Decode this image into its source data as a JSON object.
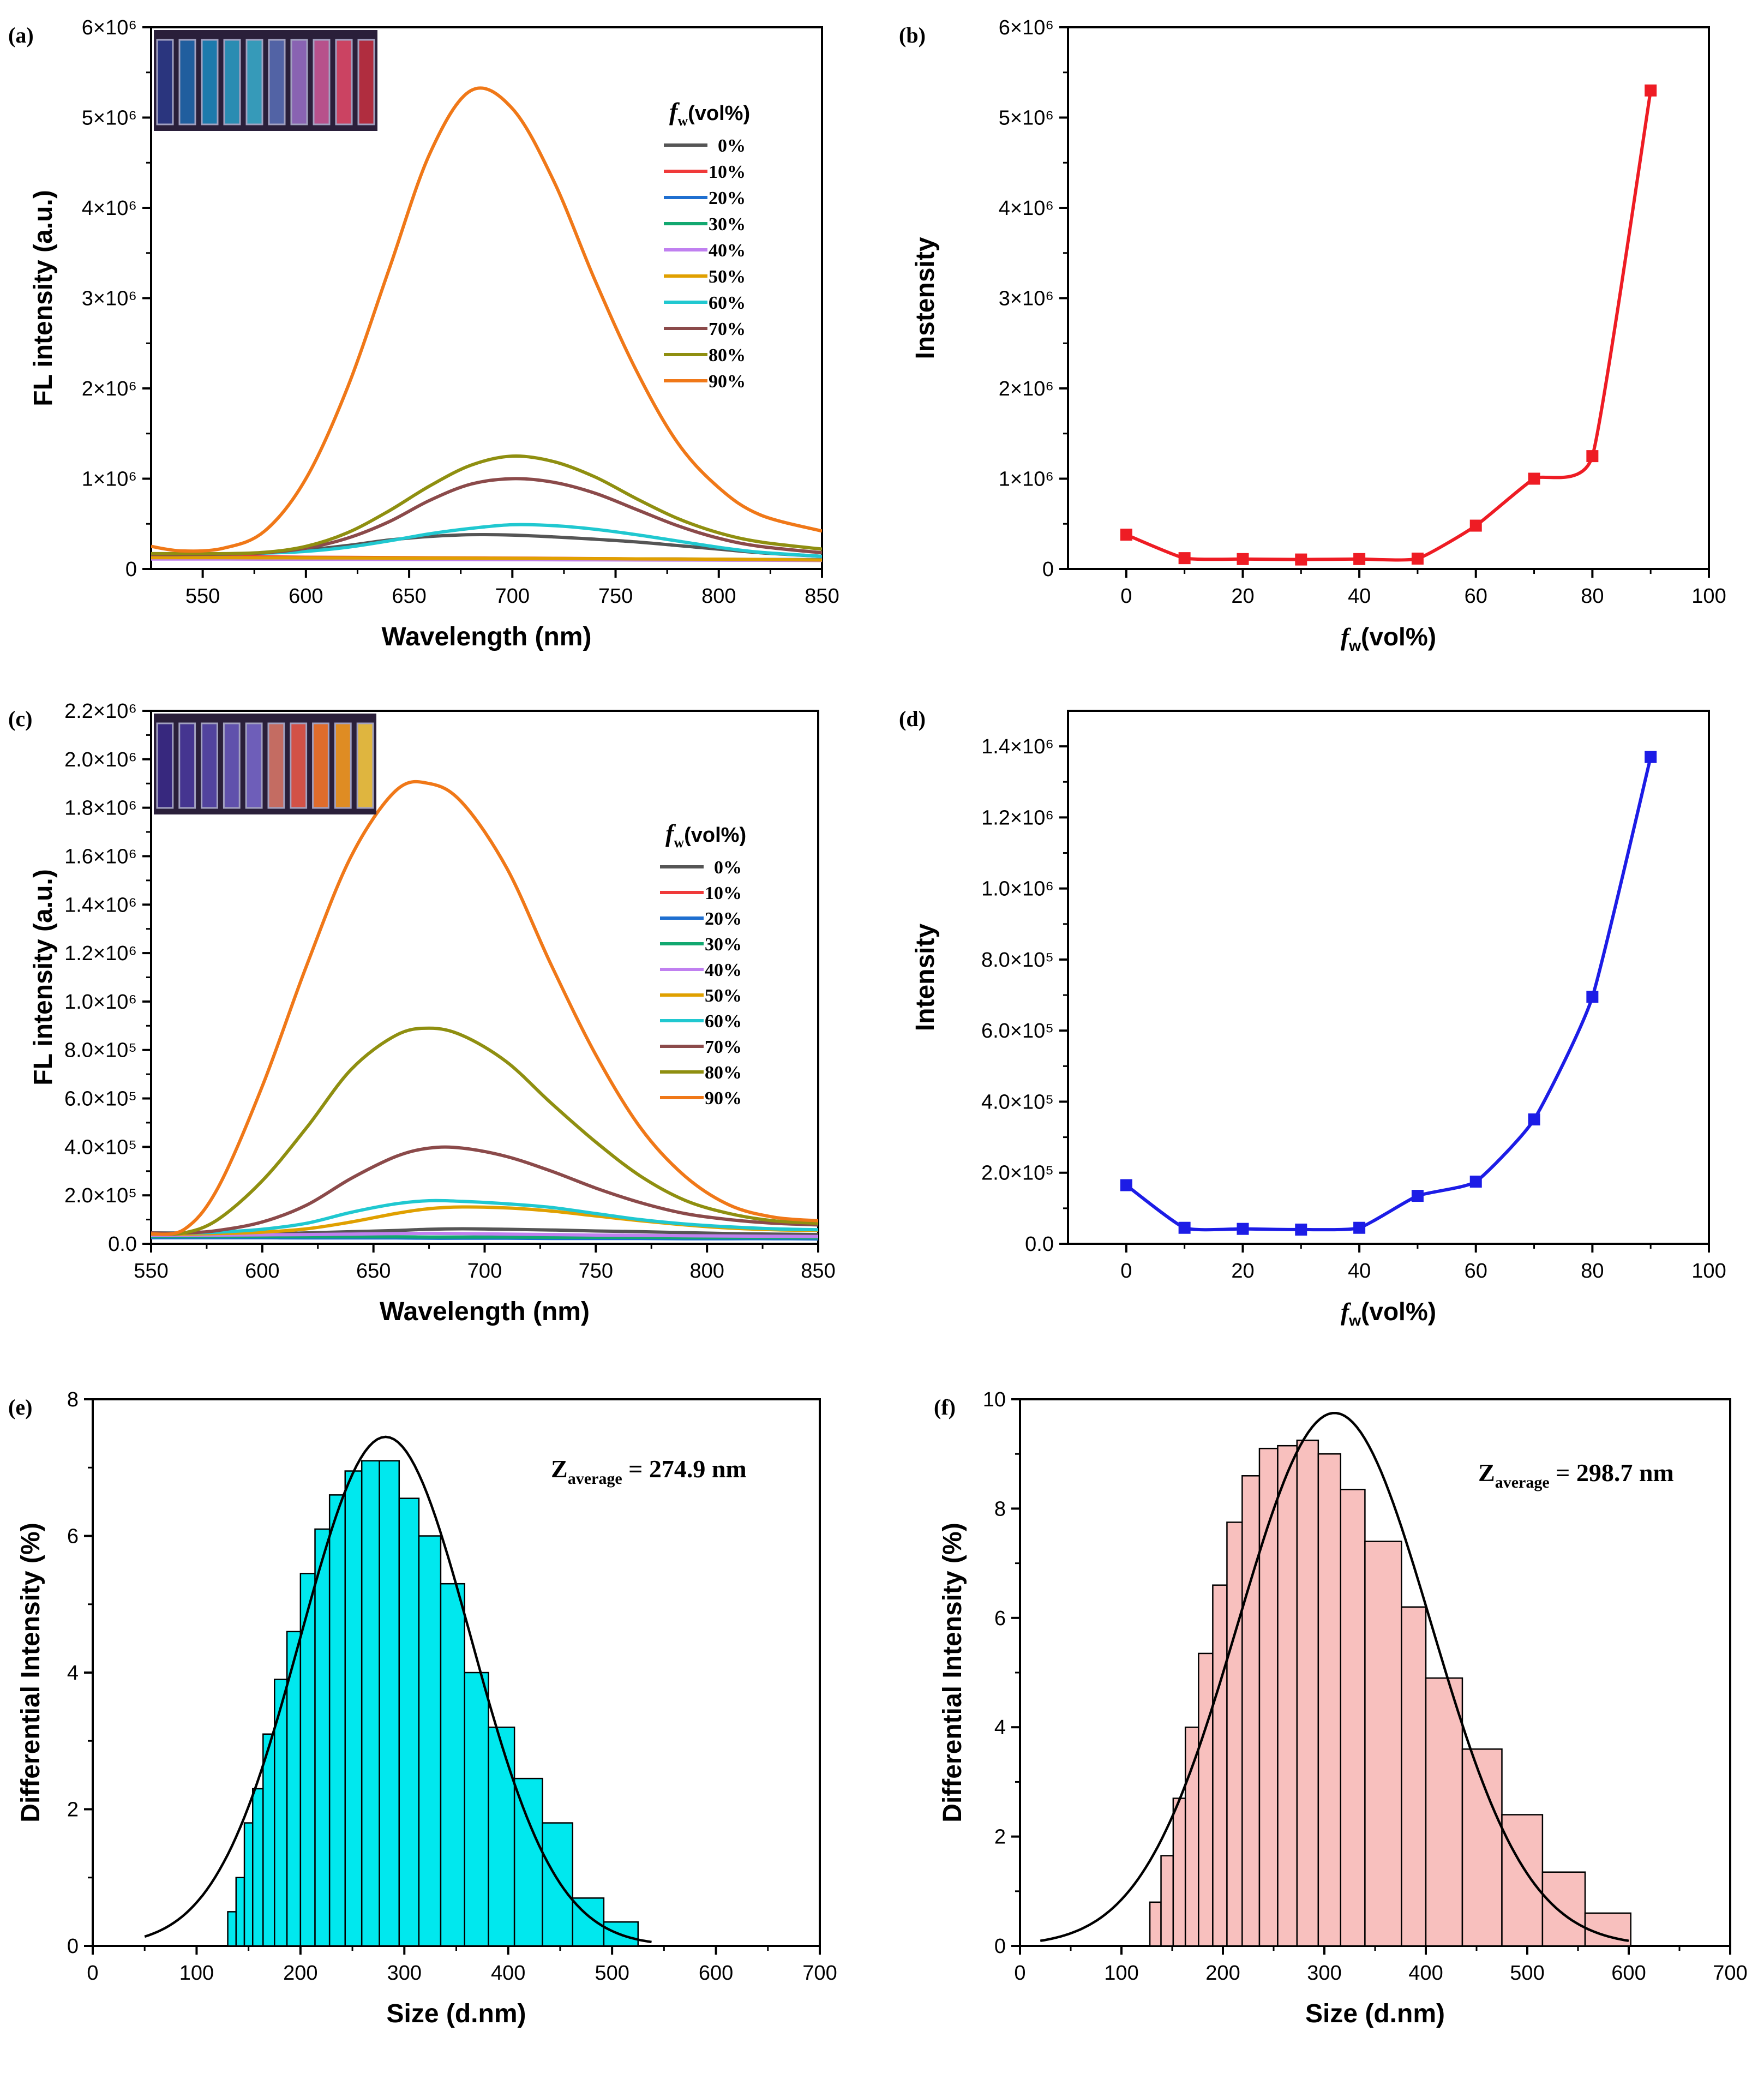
{
  "chart_data": [
    {
      "id": "a",
      "panel_label": "(a)",
      "type": "line",
      "title": "",
      "xlabel": "Wavelength (nm)",
      "ylabel": "FL intensity (a.u.)",
      "xlim": [
        525,
        850
      ],
      "ylim": [
        0,
        6000000
      ],
      "xticks": [
        550,
        600,
        650,
        700,
        750,
        800,
        850
      ],
      "yticks": [
        0,
        1000000,
        2000000,
        3000000,
        4000000,
        5000000,
        6000000
      ],
      "ytick_labels": [
        "0",
        "1×10⁶",
        "2×10⁶",
        "3×10⁶",
        "4×10⁶",
        "5×10⁶",
        "6×10⁶"
      ],
      "legend_title": "fw(vol%)",
      "legend_position": "right",
      "inset": "photo of cuvette series under UV light",
      "inset_colors": [
        "#2a3a8a",
        "#1f6ab0",
        "#1b8ac0",
        "#2aa0c8",
        "#39b0d0",
        "#5a6fb8",
        "#9a6fc8",
        "#d05a9a",
        "#e84a6a",
        "#c83040"
      ],
      "x": [
        525,
        540,
        560,
        580,
        600,
        620,
        640,
        660,
        680,
        700,
        720,
        740,
        760,
        780,
        800,
        820,
        850
      ],
      "series": [
        {
          "name": "0%",
          "color": "#555555",
          "values": [
            150000,
            155000,
            160000,
            180000,
            210000,
            260000,
            320000,
            360000,
            380000,
            375000,
            355000,
            330000,
            300000,
            260000,
            220000,
            180000,
            140000
          ]
        },
        {
          "name": "10%",
          "color": "#f03a3a",
          "values": [
            140000,
            140000,
            140000,
            135000,
            130000,
            128000,
            126000,
            124000,
            122000,
            120000,
            118000,
            115000,
            112000,
            110000,
            105000,
            100000,
            95000
          ]
        },
        {
          "name": "20%",
          "color": "#1f6fd0",
          "values": [
            120000,
            120000,
            120000,
            120000,
            119000,
            118000,
            117000,
            116000,
            115000,
            114000,
            113000,
            112000,
            111000,
            110000,
            108000,
            106000,
            104000
          ]
        },
        {
          "name": "30%",
          "color": "#12a870",
          "values": [
            115000,
            115000,
            115000,
            114000,
            113000,
            112000,
            111000,
            110000,
            109000,
            108000,
            107000,
            106000,
            105000,
            104000,
            103000,
            102000,
            100000
          ]
        },
        {
          "name": "40%",
          "color": "#c080f0",
          "values": [
            110000,
            110000,
            110000,
            109000,
            108000,
            107000,
            106000,
            105000,
            104000,
            103000,
            102000,
            101000,
            100000,
            99000,
            98000,
            97000,
            95000
          ]
        },
        {
          "name": "50%",
          "color": "#e0a000",
          "values": [
            125000,
            125000,
            125000,
            124000,
            123000,
            122000,
            121000,
            120000,
            119000,
            118000,
            116000,
            114000,
            112000,
            110000,
            108000,
            105000,
            100000
          ]
        },
        {
          "name": "60%",
          "color": "#20c8d0",
          "values": [
            160000,
            160000,
            165000,
            175000,
            195000,
            240000,
            310000,
            390000,
            450000,
            490000,
            480000,
            440000,
            380000,
            310000,
            240000,
            185000,
            140000
          ]
        },
        {
          "name": "70%",
          "color": "#8b4a4a",
          "values": [
            160000,
            160000,
            165000,
            180000,
            230000,
            340000,
            520000,
            760000,
            940000,
            1000000,
            960000,
            840000,
            660000,
            480000,
            340000,
            250000,
            180000
          ]
        },
        {
          "name": "80%",
          "color": "#8f8f10",
          "values": [
            170000,
            170000,
            170000,
            185000,
            250000,
            400000,
            640000,
            920000,
            1150000,
            1250000,
            1190000,
            1020000,
            780000,
            560000,
            400000,
            300000,
            220000
          ]
        },
        {
          "name": "90%",
          "color": "#f07818",
          "values": [
            250000,
            200000,
            230000,
            420000,
            1000000,
            2000000,
            3300000,
            4600000,
            5300000,
            5100000,
            4300000,
            3200000,
            2200000,
            1400000,
            900000,
            600000,
            420000
          ]
        }
      ]
    },
    {
      "id": "b",
      "panel_label": "(b)",
      "type": "line",
      "title": "",
      "xlabel": "fw(vol%)",
      "ylabel": "Instensity",
      "xlim": [
        -10,
        100
      ],
      "ylim": [
        0,
        6000000
      ],
      "xticks": [
        0,
        20,
        40,
        60,
        80,
        100
      ],
      "yticks": [
        0,
        1000000,
        2000000,
        3000000,
        4000000,
        5000000,
        6000000
      ],
      "ytick_labels": [
        "0",
        "1×10⁶",
        "2×10⁶",
        "3×10⁶",
        "4×10⁶",
        "5×10⁶",
        "6×10⁶"
      ],
      "color": "#ee1c24",
      "x": [
        0,
        10,
        20,
        30,
        40,
        50,
        60,
        70,
        80,
        90
      ],
      "values": [
        380000,
        120000,
        110000,
        105000,
        110000,
        115000,
        480000,
        1000000,
        1250000,
        5300000
      ]
    },
    {
      "id": "c",
      "panel_label": "(c)",
      "type": "line",
      "title": "",
      "xlabel": "Wavelength (nm)",
      "ylabel": "FL intensity (a.u.)",
      "xlim": [
        550,
        850
      ],
      "ylim": [
        0,
        2200000
      ],
      "xticks": [
        550,
        600,
        650,
        700,
        750,
        800,
        850
      ],
      "yticks": [
        0,
        200000,
        400000,
        600000,
        800000,
        1000000,
        1200000,
        1400000,
        1600000,
        1800000,
        2000000,
        2200000
      ],
      "ytick_labels": [
        "0.0",
        "2.0×10⁵",
        "4.0×10⁵",
        "6.0×10⁵",
        "8.0×10⁵",
        "1.0×10⁶",
        "1.2×10⁶",
        "1.4×10⁶",
        "1.6×10⁶",
        "1.8×10⁶",
        "2.0×10⁶",
        "2.2×10⁶"
      ],
      "legend_title": "fw(vol%)",
      "legend_position": "right",
      "inset": "photo of cuvette series under UV light",
      "inset_colors": [
        "#3a2a8a",
        "#4a3aa0",
        "#5a4ab0",
        "#6a5ac0",
        "#7a6ad0",
        "#e07a6a",
        "#f05a4a",
        "#ff7a2a",
        "#ffa020",
        "#ffd040"
      ],
      "x": [
        550,
        565,
        580,
        600,
        620,
        640,
        660,
        675,
        690,
        710,
        730,
        750,
        770,
        790,
        810,
        830,
        850
      ],
      "series": [
        {
          "name": "0%",
          "color": "#555555",
          "values": [
            35000,
            36000,
            37000,
            40000,
            45000,
            50000,
            55000,
            60000,
            62000,
            60000,
            57000,
            53000,
            50000,
            46000,
            42000,
            40000,
            38000
          ]
        },
        {
          "name": "10%",
          "color": "#f03a3a",
          "values": [
            30000,
            30000,
            30000,
            29000,
            28000,
            28000,
            27000,
            27000,
            26000,
            26000,
            25000,
            25000,
            24000,
            24000,
            23000,
            23000,
            22000
          ]
        },
        {
          "name": "20%",
          "color": "#1f6fd0",
          "values": [
            25000,
            25000,
            25000,
            25000,
            24000,
            24000,
            24000,
            23000,
            23000,
            23000,
            22000,
            22000,
            22000,
            21000,
            21000,
            21000,
            20000
          ]
        },
        {
          "name": "30%",
          "color": "#12a870",
          "values": [
            30000,
            30000,
            30000,
            30000,
            29000,
            29000,
            29000,
            28000,
            28000,
            28000,
            27000,
            27000,
            27000,
            26000,
            26000,
            26000,
            25000
          ]
        },
        {
          "name": "40%",
          "color": "#c080f0",
          "values": [
            35000,
            35000,
            36000,
            37000,
            38000,
            40000,
            42000,
            43000,
            42000,
            40000,
            38000,
            36000,
            35000,
            33000,
            32000,
            31000,
            30000
          ]
        },
        {
          "name": "50%",
          "color": "#e0a000",
          "values": [
            40000,
            40000,
            42000,
            48000,
            62000,
            90000,
            125000,
            145000,
            152000,
            148000,
            135000,
            115000,
            95000,
            78000,
            65000,
            58000,
            55000
          ]
        },
        {
          "name": "60%",
          "color": "#20c8d0",
          "values": [
            45000,
            45000,
            48000,
            60000,
            85000,
            130000,
            165000,
            178000,
            175000,
            165000,
            150000,
            125000,
            100000,
            82000,
            70000,
            62000,
            58000
          ]
        },
        {
          "name": "70%",
          "color": "#8b4a4a",
          "values": [
            45000,
            45000,
            55000,
            90000,
            160000,
            270000,
            360000,
            395000,
            395000,
            360000,
            300000,
            230000,
            170000,
            125000,
            100000,
            85000,
            78000
          ]
        },
        {
          "name": "80%",
          "color": "#8f8f10",
          "values": [
            40000,
            45000,
            100000,
            260000,
            480000,
            720000,
            860000,
            890000,
            860000,
            750000,
            580000,
            420000,
            280000,
            180000,
            125000,
            95000,
            85000
          ]
        },
        {
          "name": "90%",
          "color": "#f07818",
          "values": [
            40000,
            60000,
            230000,
            650000,
            1150000,
            1600000,
            1870000,
            1900000,
            1820000,
            1550000,
            1150000,
            780000,
            480000,
            280000,
            160000,
            110000,
            95000
          ]
        }
      ]
    },
    {
      "id": "d",
      "panel_label": "(d)",
      "type": "line",
      "title": "",
      "xlabel": "fw(vol%)",
      "ylabel": "Intensity",
      "xlim": [
        -10,
        100
      ],
      "ylim": [
        0,
        1500000
      ],
      "xticks": [
        0,
        20,
        40,
        60,
        80,
        100
      ],
      "yticks": [
        0,
        200000,
        400000,
        600000,
        800000,
        1000000,
        1200000,
        1400000
      ],
      "ytick_labels": [
        "0.0",
        "2.0×10⁵",
        "4.0×10⁵",
        "6.0×10⁵",
        "8.0×10⁵",
        "1.0×10⁶",
        "1.2×10⁶",
        "1.4×10⁶"
      ],
      "color": "#1c1ce6",
      "x": [
        0,
        10,
        20,
        30,
        40,
        50,
        60,
        70,
        80,
        90
      ],
      "values": [
        165000,
        45000,
        42000,
        40000,
        45000,
        135000,
        175000,
        350000,
        695000,
        1370000
      ]
    },
    {
      "id": "e",
      "panel_label": "(e)",
      "type": "bar",
      "title": "",
      "xlabel": "Size (d.nm)",
      "ylabel": "Differential Intensity (%)",
      "xlim": [
        0,
        700
      ],
      "ylim": [
        0,
        8
      ],
      "xticks": [
        0,
        100,
        200,
        300,
        400,
        500,
        600,
        700
      ],
      "yticks": [
        0,
        2,
        4,
        6,
        8
      ],
      "annotation": "Zaverage = 274.9 nm",
      "annotation_parts": [
        "Z",
        "average",
        " = 274.9 nm"
      ],
      "bar_color": "#00e8ee",
      "fit": {
        "mean": 282,
        "sd": 82,
        "peak": 7.45,
        "x_start": 50,
        "x_end": 540
      },
      "bins": [
        {
          "left": 130,
          "right": 138,
          "value": 0.5
        },
        {
          "left": 138,
          "right": 146,
          "value": 1.0
        },
        {
          "left": 146,
          "right": 154,
          "value": 1.8
        },
        {
          "left": 154,
          "right": 164,
          "value": 2.3
        },
        {
          "left": 164,
          "right": 175,
          "value": 3.1
        },
        {
          "left": 175,
          "right": 187,
          "value": 3.9
        },
        {
          "left": 187,
          "right": 200,
          "value": 4.6
        },
        {
          "left": 200,
          "right": 214,
          "value": 5.45
        },
        {
          "left": 214,
          "right": 228,
          "value": 6.1
        },
        {
          "left": 228,
          "right": 243,
          "value": 6.6
        },
        {
          "left": 243,
          "right": 259,
          "value": 6.95
        },
        {
          "left": 259,
          "right": 276,
          "value": 7.1
        },
        {
          "left": 276,
          "right": 295,
          "value": 7.1
        },
        {
          "left": 295,
          "right": 314,
          "value": 6.55
        },
        {
          "left": 314,
          "right": 335,
          "value": 6.0
        },
        {
          "left": 335,
          "right": 358,
          "value": 5.3
        },
        {
          "left": 358,
          "right": 381,
          "value": 4.0
        },
        {
          "left": 381,
          "right": 406,
          "value": 3.2
        },
        {
          "left": 406,
          "right": 433,
          "value": 2.45
        },
        {
          "left": 433,
          "right": 462,
          "value": 1.8
        },
        {
          "left": 462,
          "right": 492,
          "value": 0.7
        },
        {
          "left": 492,
          "right": 525,
          "value": 0.35
        }
      ]
    },
    {
      "id": "f",
      "panel_label": "(f)",
      "type": "bar",
      "title": "",
      "xlabel": "Size (d.nm)",
      "ylabel": "Differential Intensity (%)",
      "xlim": [
        0,
        700
      ],
      "ylim": [
        0,
        10
      ],
      "xticks": [
        0,
        100,
        200,
        300,
        400,
        500,
        600,
        700
      ],
      "yticks": [
        0,
        2,
        4,
        6,
        8,
        10
      ],
      "annotation": "Zaverage = 298.7 nm",
      "annotation_parts": [
        "Z",
        "average",
        " = 298.7 nm"
      ],
      "bar_color": "#f8c0be",
      "fit": {
        "mean": 310,
        "sd": 95,
        "peak": 9.75,
        "x_start": 20,
        "x_end": 600
      },
      "bins": [
        {
          "left": 128,
          "right": 139,
          "value": 0.8
        },
        {
          "left": 139,
          "right": 151,
          "value": 1.65
        },
        {
          "left": 151,
          "right": 163,
          "value": 2.7
        },
        {
          "left": 163,
          "right": 176,
          "value": 4.0
        },
        {
          "left": 176,
          "right": 190,
          "value": 5.35
        },
        {
          "left": 190,
          "right": 204,
          "value": 6.6
        },
        {
          "left": 204,
          "right": 219,
          "value": 7.75
        },
        {
          "left": 219,
          "right": 236,
          "value": 8.6
        },
        {
          "left": 236,
          "right": 254,
          "value": 9.1
        },
        {
          "left": 254,
          "right": 273,
          "value": 9.15
        },
        {
          "left": 273,
          "right": 294,
          "value": 9.25
        },
        {
          "left": 294,
          "right": 316,
          "value": 9.0
        },
        {
          "left": 316,
          "right": 340,
          "value": 8.35
        },
        {
          "left": 340,
          "right": 376,
          "value": 7.4
        },
        {
          "left": 376,
          "right": 400,
          "value": 6.2
        },
        {
          "left": 400,
          "right": 436,
          "value": 4.9
        },
        {
          "left": 436,
          "right": 475,
          "value": 3.6
        },
        {
          "left": 475,
          "right": 515,
          "value": 2.4
        },
        {
          "left": 515,
          "right": 557,
          "value": 1.35
        },
        {
          "left": 557,
          "right": 602,
          "value": 0.6
        }
      ]
    }
  ]
}
